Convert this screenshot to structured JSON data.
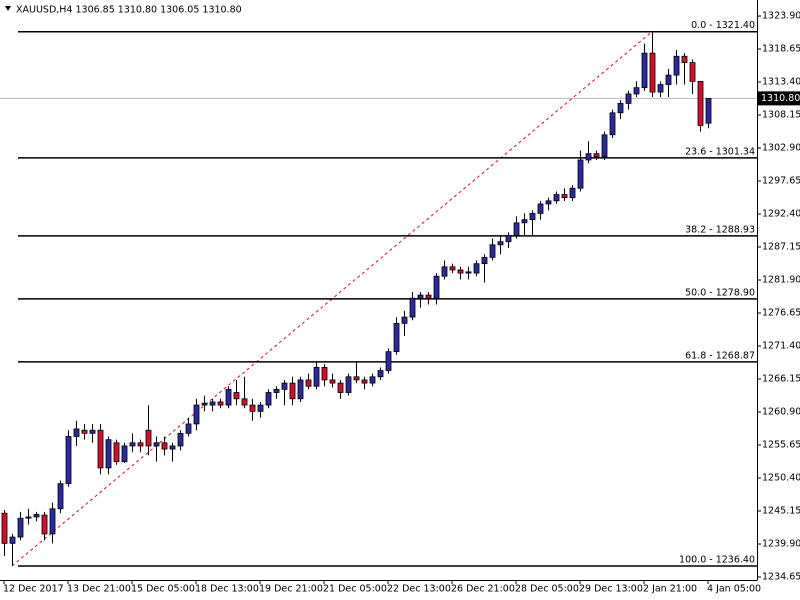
{
  "chart_data": {
    "type": "candlestick",
    "title": "XAUUSD,H4  1306.85 1310.80 1306.05 1310.80",
    "up_color": "#2a2a9c",
    "down_color": "#d0102a",
    "categories": [
      "12 Dec 2017",
      null,
      null,
      null,
      null,
      null,
      null,
      null,
      "13 Dec 21:00",
      null,
      null,
      null,
      null,
      null,
      null,
      null,
      "15 Dec 05:00",
      null,
      null,
      null,
      null,
      null,
      null,
      null,
      "18 Dec 13:00",
      null,
      null,
      null,
      null,
      null,
      null,
      null,
      "19 Dec 21:00",
      null,
      null,
      null,
      null,
      null,
      null,
      null,
      "21 Dec 05:00",
      null,
      null,
      null,
      null,
      null,
      null,
      null,
      "22 Dec 13:00",
      null,
      null,
      null,
      null,
      null,
      null,
      null,
      "26 Dec 21:00",
      null,
      null,
      null,
      null,
      null,
      null,
      null,
      "28 Dec 05:00",
      null,
      null,
      null,
      null,
      null,
      null,
      null,
      "29 Dec 13:00",
      null,
      null,
      null,
      null,
      null,
      null,
      null,
      "2 Jan 21:00",
      null,
      null,
      null,
      null,
      null,
      null,
      null,
      "4 Jan 05:00"
    ],
    "open": [
      1244.8,
      1240,
      1241,
      1244,
      1244.2,
      1244.5,
      1241.5,
      1245.5,
      1249.5,
      1257,
      1258,
      1257.5,
      1258,
      1252,
      1256,
      1253,
      1255.5,
      1256,
      1258,
      1255.5,
      1256,
      1255,
      1255.5,
      1257.5,
      1259,
      1262,
      1262,
      1262.5,
      1262,
      1264,
      1263,
      1262,
      1261,
      1262,
      1264,
      1264.5,
      1265.5,
      1263,
      1266,
      1265,
      1268,
      1266,
      1265.5,
      1264,
      1266.5,
      1266,
      1265.5,
      1266.5,
      1267.5,
      1270.5,
      1275,
      1276,
      1279,
      1279.5,
      1279,
      1282.5,
      1284,
      1283.5,
      1283,
      1283,
      1284.5,
      1285.5,
      1287.5,
      1288,
      1289,
      1291,
      1291.5,
      1292.5,
      1294,
      1294.5,
      1295.5,
      1295,
      1296.5,
      1301,
      1302,
      1301.5,
      1305,
      1308.5,
      1310,
      1311.5,
      1312.5,
      1318,
      1311.8,
      1313,
      1314.5,
      1317.5,
      1316.5,
      1313.5,
      1306.85
    ],
    "high": [
      1245.3,
      1241.5,
      1245,
      1245.5,
      1245,
      1245,
      1246.5,
      1250,
      1258,
      1259.5,
      1259,
      1259,
      1259,
      1257,
      1256.5,
      1256,
      1257.5,
      1256.5,
      1262,
      1257,
      1257,
      1256,
      1258,
      1260,
      1263,
      1263.5,
      1263,
      1263,
      1265,
      1266,
      1266.5,
      1263,
      1262.5,
      1264.5,
      1265,
      1266,
      1266.5,
      1266.5,
      1267,
      1269,
      1268.5,
      1267,
      1266,
      1267,
      1269,
      1266.5,
      1267,
      1268,
      1271,
      1276,
      1277,
      1280,
      1280,
      1280,
      1283,
      1285,
      1284.5,
      1284,
      1284,
      1285,
      1286,
      1288.5,
      1289,
      1289.5,
      1292,
      1292.5,
      1293,
      1294.5,
      1295,
      1296,
      1296.5,
      1297,
      1302.5,
      1304,
      1302.5,
      1305.5,
      1309,
      1310.5,
      1312,
      1313.5,
      1319.5,
      1321.4,
      1313.5,
      1315.5,
      1318.5,
      1318,
      1317,
      1313.5,
      1310.8
    ],
    "low": [
      1238,
      1236.4,
      1240.5,
      1243,
      1243.5,
      1240.5,
      1240,
      1244.8,
      1249,
      1255.5,
      1256.5,
      1256,
      1251,
      1251,
      1252.5,
      1252.8,
      1254.5,
      1254.5,
      1254,
      1253,
      1254,
      1253,
      1254.8,
      1257,
      1258,
      1261,
      1261,
      1261.5,
      1261.5,
      1262,
      1261.5,
      1259.5,
      1260,
      1261.5,
      1263,
      1262,
      1262,
      1262.5,
      1264.5,
      1264.5,
      1265,
      1264.8,
      1263,
      1263.5,
      1265.5,
      1264.5,
      1265,
      1266,
      1267,
      1270,
      1273,
      1275.5,
      1277.5,
      1278,
      1278,
      1282,
      1283,
      1282,
      1282,
      1282.5,
      1281.5,
      1285,
      1286,
      1287,
      1288.5,
      1289,
      1289,
      1291.5,
      1293,
      1294,
      1294.5,
      1294.5,
      1296,
      1300.5,
      1301,
      1301,
      1304.5,
      1307.5,
      1309,
      1311,
      1312,
      1311,
      1311,
      1311,
      1313,
      1313,
      1311.5,
      1305.5,
      1306.05
    ],
    "close": [
      1240,
      1241,
      1244,
      1244.2,
      1244.6,
      1241.5,
      1245.5,
      1249.5,
      1257,
      1258.2,
      1257.5,
      1258,
      1252,
      1256.5,
      1253,
      1255.5,
      1256,
      1255.5,
      1255.5,
      1256,
      1255,
      1255.5,
      1257.5,
      1259,
      1262,
      1262.3,
      1262.5,
      1262,
      1264.5,
      1263,
      1262,
      1261,
      1262,
      1264,
      1264.5,
      1265.5,
      1263,
      1266,
      1265,
      1268,
      1266,
      1265.5,
      1264,
      1266.5,
      1266,
      1265.5,
      1266.5,
      1267.5,
      1270.5,
      1275,
      1276,
      1279,
      1279.5,
      1279,
      1282.5,
      1284,
      1283.5,
      1283,
      1283.2,
      1284.5,
      1285.5,
      1287.5,
      1288,
      1289,
      1291,
      1291.5,
      1292.5,
      1294,
      1294.5,
      1295.5,
      1295,
      1296.5,
      1301,
      1302,
      1301.5,
      1305,
      1308.5,
      1310,
      1311.5,
      1312.5,
      1318,
      1311.8,
      1313,
      1314.5,
      1317.5,
      1316.5,
      1313.5,
      1306.5,
      1310.8
    ],
    "ylim": [
      1234.17,
      1326.45
    ],
    "yticks": [
      {
        "value": 1323.9,
        "label": "1323.90"
      },
      1318.65,
      {
        "value": 1313.4,
        "label": "1313.40"
      },
      1308.15,
      {
        "value": 1302.9,
        "label": "1302.90"
      },
      1297.65,
      {
        "value": 1292.4,
        "label": "1292.40"
      },
      1287.15,
      {
        "value": 1281.9,
        "label": "1281.90"
      },
      1276.65,
      {
        "value": 1271.4,
        "label": "1271.40"
      },
      1266.15,
      {
        "value": 1260.9,
        "label": "1260.90"
      },
      1255.65,
      {
        "value": 1250.4,
        "label": "1250.40"
      },
      1245.15,
      {
        "value": 1239.9,
        "label": "1239.90"
      },
      1234.65
    ],
    "current_price": {
      "value": 1310.8,
      "label": "1310.80"
    },
    "fib_color": "#d0102a",
    "fib_levels": [
      {
        "label": "0.0 - 1321.40",
        "value": 1321.4
      },
      {
        "label": "23.6 - 1301.34",
        "value": 1301.34
      },
      {
        "label": "38.2 - 1288.93",
        "value": 1288.93
      },
      {
        "label": "50.0 - 1278.90",
        "value": 1278.9
      },
      {
        "label": "61.8 - 1268.87",
        "value": 1268.87
      },
      {
        "label": "100.0 - 1236.40",
        "value": 1236.4
      }
    ]
  }
}
